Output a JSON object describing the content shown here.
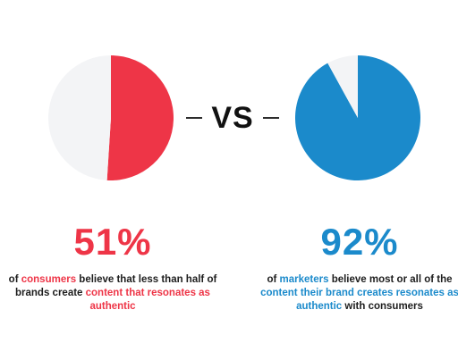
{
  "chart_data": [
    {
      "type": "pie",
      "slices": [
        {
          "label": "believe that less than half of brands create content that resonates as authentic",
          "value": 51,
          "color": "#ee3547"
        },
        {
          "label": "",
          "value": 49,
          "color": "#f3f4f6"
        }
      ]
    },
    {
      "type": "pie",
      "slices": [
        {
          "label": "believe most or all of the content their brand creates resonates as authentic with consumers",
          "value": 92,
          "color": "#1b8acb"
        },
        {
          "label": "",
          "value": 8,
          "color": "#f3f4f6"
        }
      ]
    }
  ],
  "vs_label": "VS",
  "left": {
    "percent": "51%",
    "caption": {
      "p1": "of ",
      "h1": "consumers",
      "p2": " believe that less than half of brands create ",
      "h2": "content that resonates as authentic",
      "p3": ""
    }
  },
  "right": {
    "percent": "92%",
    "caption": {
      "p1": "of ",
      "h1": "marketers",
      "p2": " believe most or all of the ",
      "h2": "content their brand creates resonates as authentic",
      "p3": " with consumers"
    }
  }
}
